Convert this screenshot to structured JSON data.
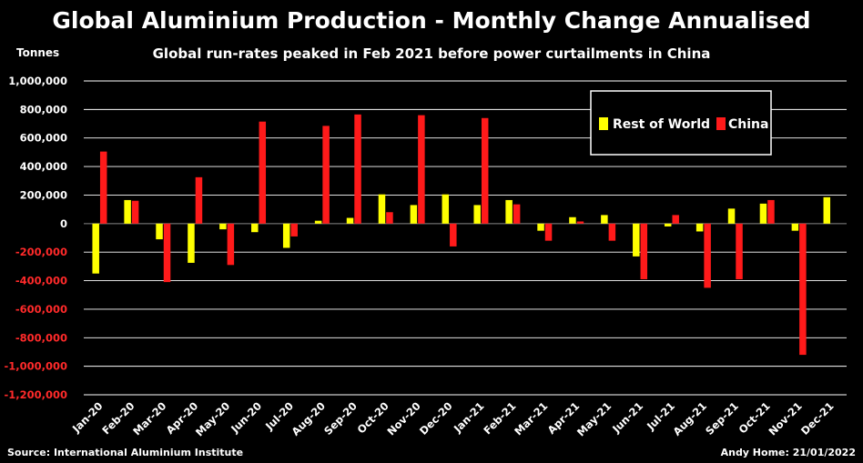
{
  "chart_data": {
    "type": "bar",
    "title": "Global Aluminium Production - Monthly Change Annualised",
    "subtitle": "Global run-rates peaked in Feb 2021 before power curtailments in China",
    "ylabel": "Tonnes",
    "ylim": [
      -1200000,
      1000000
    ],
    "ytick_step": 200000,
    "y_ticks": [
      "1,000,000",
      "800,000",
      "600,000",
      "400,000",
      "200,000",
      "0",
      "-200,000",
      "-400,000",
      "-600,000",
      "-800,000",
      "-1,000,000",
      "-1,200,000"
    ],
    "negative_tick_color": "#ff2a2a",
    "positive_tick_color": "#ffffff",
    "grid": true,
    "legend": "top-right",
    "categories": [
      "Jan-20",
      "Feb-20",
      "Mar-20",
      "Apr-20",
      "May-20",
      "Jun-20",
      "Jul-20",
      "Aug-20",
      "Sep-20",
      "Oct-20",
      "Nov-20",
      "Dec-20",
      "Jan-21",
      "Feb-21",
      "Mar-21",
      "Apr-21",
      "May-21",
      "Jun-21",
      "Jul-21",
      "Aug-21",
      "Sep-21",
      "Oct-21",
      "Nov-21",
      "Dec-21"
    ],
    "series": [
      {
        "name": "Rest of World",
        "color": "#ffff00",
        "values": [
          -350000,
          165000,
          -110000,
          -275000,
          -40000,
          -60000,
          -170000,
          20000,
          40000,
          205000,
          130000,
          205000,
          130000,
          165000,
          -50000,
          45000,
          60000,
          -230000,
          -20000,
          -55000,
          105000,
          140000,
          -50000,
          185000
        ]
      },
      {
        "name": "China",
        "color": "#ff1a1a",
        "values": [
          505000,
          160000,
          -410000,
          325000,
          -290000,
          715000,
          -90000,
          685000,
          765000,
          80000,
          760000,
          -160000,
          740000,
          135000,
          -120000,
          15000,
          -120000,
          -390000,
          60000,
          -450000,
          -390000,
          165000,
          -920000,
          0
        ]
      }
    ]
  },
  "footer": {
    "source": "Source: International Aluminium Institute",
    "credit": "Andy Home: 21/01/2022"
  }
}
